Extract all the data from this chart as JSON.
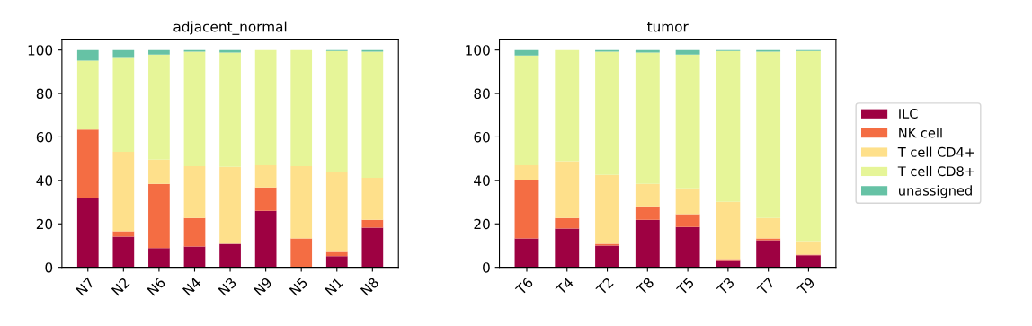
{
  "chart_data": [
    {
      "type": "bar",
      "title": "adjacent_normal",
      "stacked": true,
      "categories": [
        "N7",
        "N2",
        "N6",
        "N4",
        "N3",
        "N9",
        "N5",
        "N1",
        "N8"
      ],
      "ylim": [
        0,
        105
      ],
      "yticks": [
        0,
        20,
        40,
        60,
        80,
        100
      ],
      "series": [
        {
          "color": "#9e0142",
          "values": [
            31.8,
            14.1,
            8.8,
            9.6,
            10.8,
            26.0,
            0,
            5.1,
            18.2
          ]
        },
        {
          "color": "#f46d43",
          "values": [
            31.6,
            2.5,
            29.6,
            13.1,
            0,
            10.7,
            13.3,
            2.0,
            3.7
          ]
        },
        {
          "color": "#fee08b",
          "values": [
            0,
            36.6,
            11.1,
            23.9,
            35.4,
            10.3,
            33.3,
            36.6,
            19.3
          ]
        },
        {
          "color": "#e6f598",
          "values": [
            31.7,
            43.1,
            48.4,
            52.6,
            52.6,
            53.0,
            53.4,
            55.9,
            58.0
          ]
        },
        {
          "color": "#66c2a5",
          "values": [
            4.9,
            3.7,
            2.1,
            0.8,
            1.2,
            0,
            0,
            0.4,
            0.8
          ]
        }
      ]
    },
    {
      "type": "bar",
      "title": "tumor",
      "stacked": true,
      "categories": [
        "T6",
        "T4",
        "T2",
        "T8",
        "T5",
        "T3",
        "T7",
        "T9"
      ],
      "ylim": [
        0,
        105
      ],
      "yticks": [
        0,
        20,
        40,
        60,
        80,
        100
      ],
      "legend": "right",
      "series": [
        {
          "name": "ILC",
          "color": "#9e0142",
          "values": [
            13.3,
            17.8,
            10.0,
            21.9,
            18.6,
            3.0,
            12.5,
            5.5
          ]
        },
        {
          "name": "NK cell",
          "color": "#f46d43",
          "values": [
            27.1,
            4.9,
            0.8,
            6.2,
            5.8,
            0.8,
            0.8,
            0.4
          ]
        },
        {
          "name": "T cell CD4+",
          "color": "#fee08b",
          "values": [
            6.6,
            26.1,
            31.7,
            10.3,
            11.9,
            26.3,
            9.4,
            6.2
          ]
        },
        {
          "name": "T cell CD8+",
          "color": "#e6f598",
          "values": [
            50.5,
            51.2,
            56.7,
            60.4,
            61.6,
            69.5,
            76.5,
            87.5
          ]
        },
        {
          "name": "unassigned",
          "color": "#66c2a5",
          "values": [
            2.5,
            0,
            0.8,
            1.2,
            2.1,
            0.4,
            0.8,
            0.4
          ]
        }
      ]
    }
  ]
}
